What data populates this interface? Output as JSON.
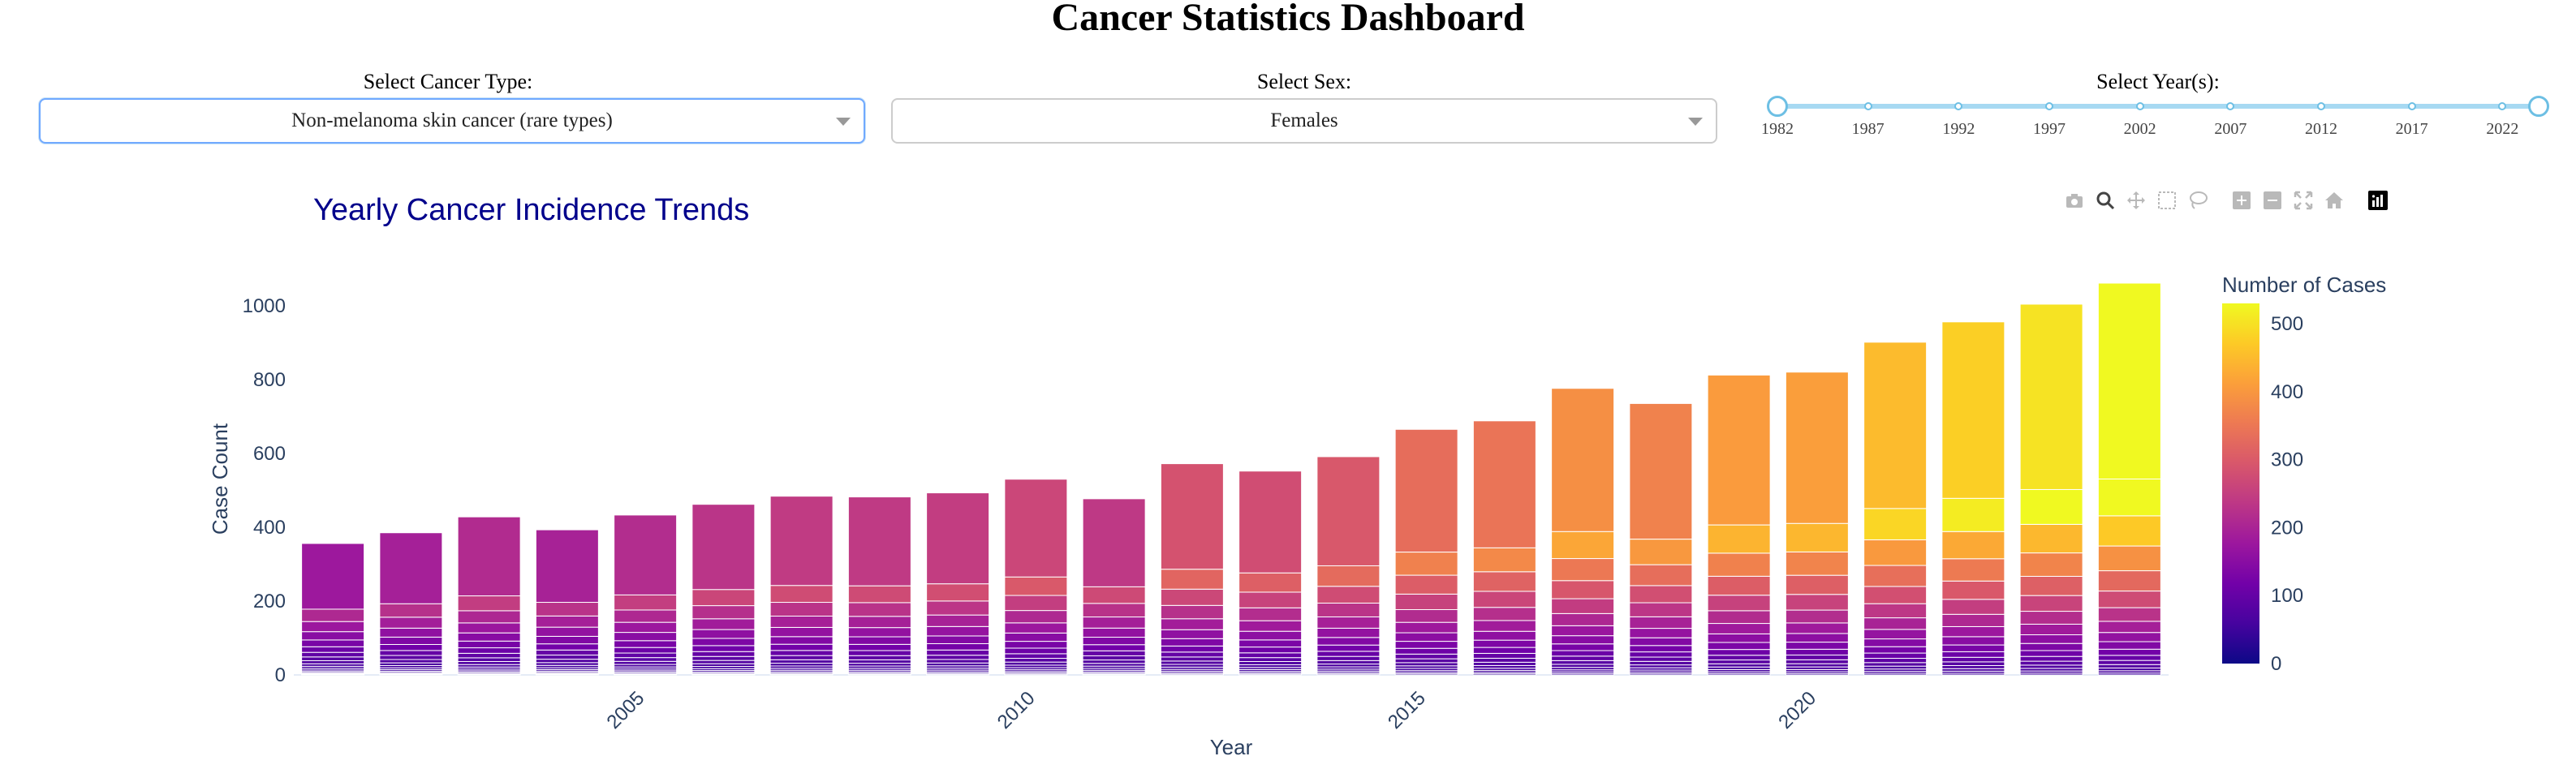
{
  "page": {
    "title": "Cancer Statistics Dashboard"
  },
  "controls": {
    "cancer_type": {
      "label": "Select Cancer Type:",
      "value": "Non-melanoma skin cancer (rare types)"
    },
    "sex": {
      "label": "Select Sex:",
      "value": "Females"
    },
    "years": {
      "label": "Select Year(s):",
      "marks": [
        "1982",
        "1987",
        "1992",
        "1997",
        "2002",
        "2007",
        "2012",
        "2017",
        "2022"
      ],
      "range": [
        1982,
        2024
      ]
    }
  },
  "modebar": {
    "icons": [
      "camera-icon",
      "zoom-icon",
      "pan-icon",
      "box-select-icon",
      "lasso-icon",
      "zoom-in-icon",
      "zoom-out-icon",
      "autoscale-icon",
      "reset-axes-icon",
      "plotly-logo-icon"
    ]
  },
  "chart_data": {
    "type": "bar",
    "title": "Yearly Cancer Incidence Trends",
    "xlabel": "Year",
    "ylabel": "Case Count",
    "x": [
      2001,
      2002,
      2003,
      2004,
      2005,
      2006,
      2007,
      2008,
      2009,
      2010,
      2011,
      2012,
      2013,
      2014,
      2015,
      2016,
      2017,
      2018,
      2019,
      2020,
      2021,
      2022,
      2023,
      2024
    ],
    "values": [
      356,
      385,
      428,
      393,
      433,
      462,
      484,
      482,
      493,
      530,
      477,
      572,
      552,
      591,
      665,
      688,
      776,
      735,
      812,
      820,
      901,
      956,
      1004,
      1061
    ],
    "x_ticks": [
      "2005",
      "2010",
      "2015",
      "2020"
    ],
    "y_ticks": [
      0,
      200,
      400,
      600,
      800,
      1000
    ],
    "ylim": [
      0,
      1061
    ],
    "stacked": true,
    "colorbar": {
      "title": "Number of Cases",
      "ticks": [
        0,
        100,
        200,
        300,
        400,
        500
      ],
      "range": [
        0,
        530
      ],
      "colorscale": "plasma"
    },
    "grid": false
  }
}
